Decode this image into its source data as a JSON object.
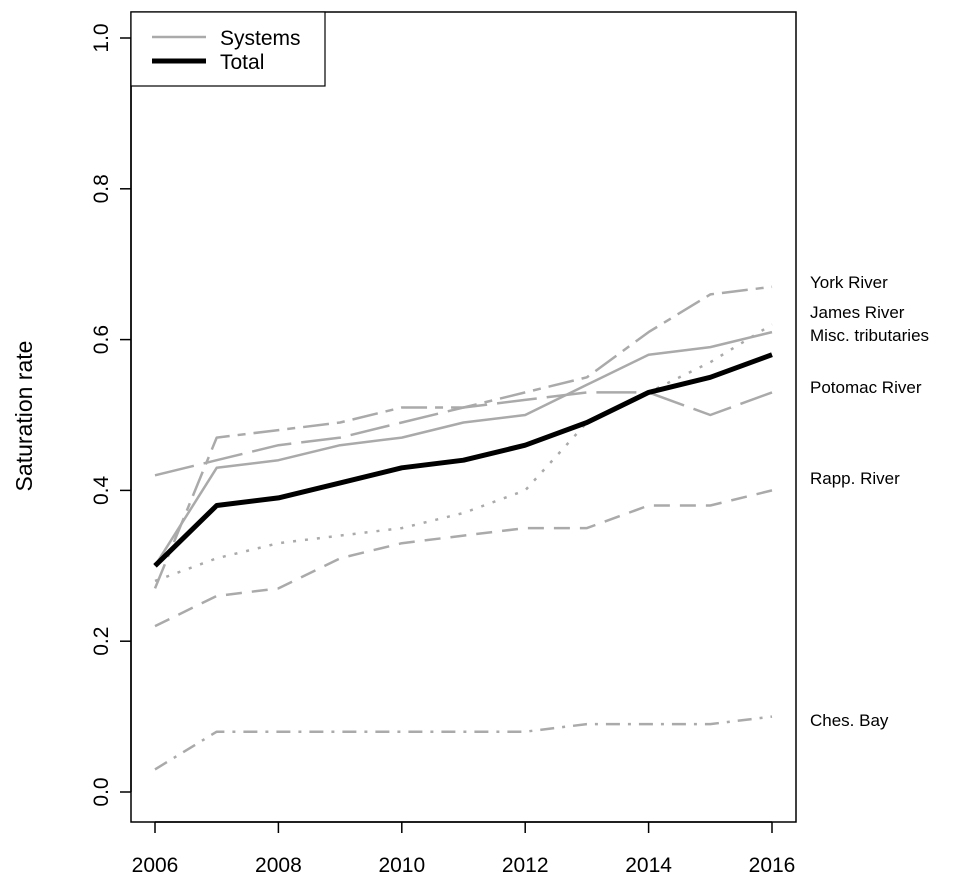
{
  "chart_data": {
    "type": "line",
    "title": "",
    "xlabel": "",
    "ylabel": "Saturation rate",
    "xlim": [
      2006,
      2016
    ],
    "ylim": [
      0.0,
      1.0
    ],
    "x_ticks": [
      2006,
      2008,
      2010,
      2012,
      2014,
      2016
    ],
    "x_tick_labels": [
      "2006",
      "2008",
      "2010",
      "2012",
      "2014",
      "2016"
    ],
    "y_ticks": [
      0.0,
      0.2,
      0.4,
      0.6,
      0.8,
      1.0
    ],
    "y_tick_labels": [
      "0.0",
      "0.2",
      "0.4",
      "0.6",
      "0.8",
      "1.0"
    ],
    "grid": false,
    "legend_position": "top-left",
    "legend": [
      {
        "label": "Systems",
        "color": "#aaaaaa",
        "style": "solid-thin"
      },
      {
        "label": "Total",
        "color": "#000000",
        "style": "solid-thick"
      }
    ],
    "x": [
      2006,
      2007,
      2008,
      2009,
      2010,
      2011,
      2012,
      2013,
      2014,
      2015,
      2016
    ],
    "series": [
      {
        "name": "York River",
        "color": "#aaaaaa",
        "dash": "long-short",
        "values": [
          0.27,
          0.47,
          0.48,
          0.49,
          0.51,
          0.51,
          0.53,
          0.55,
          0.61,
          0.66,
          0.67
        ]
      },
      {
        "name": "James River",
        "color": "#aaaaaa",
        "dash": "dot",
        "values": [
          0.28,
          0.31,
          0.33,
          0.34,
          0.35,
          0.37,
          0.4,
          0.49,
          0.53,
          0.57,
          0.62
        ]
      },
      {
        "name": "Misc. tributaries",
        "color": "#aaaaaa",
        "dash": "solid",
        "values": [
          0.3,
          0.43,
          0.44,
          0.46,
          0.47,
          0.49,
          0.5,
          0.54,
          0.58,
          0.59,
          0.61
        ]
      },
      {
        "name": "Potomac River",
        "color": "#aaaaaa",
        "dash": "long",
        "values": [
          0.42,
          0.44,
          0.46,
          0.47,
          0.49,
          0.51,
          0.52,
          0.53,
          0.53,
          0.5,
          0.53
        ]
      },
      {
        "name": "Rapp. River",
        "color": "#aaaaaa",
        "dash": "dash",
        "values": [
          0.22,
          0.26,
          0.27,
          0.31,
          0.33,
          0.34,
          0.35,
          0.35,
          0.38,
          0.38,
          0.4
        ]
      },
      {
        "name": "Ches. Bay",
        "color": "#aaaaaa",
        "dash": "dash-dot",
        "values": [
          0.03,
          0.08,
          0.08,
          0.08,
          0.08,
          0.08,
          0.08,
          0.09,
          0.09,
          0.09,
          0.1
        ]
      },
      {
        "name": "Total",
        "color": "#000000",
        "dash": "solid-thick",
        "values": [
          0.3,
          0.38,
          0.39,
          0.41,
          0.43,
          0.44,
          0.46,
          0.49,
          0.53,
          0.55,
          0.58
        ]
      }
    ],
    "right_labels": [
      "York River",
      "James River",
      "Misc. tributaries",
      "Potomac River",
      "Rapp. River",
      "Ches. Bay"
    ]
  }
}
